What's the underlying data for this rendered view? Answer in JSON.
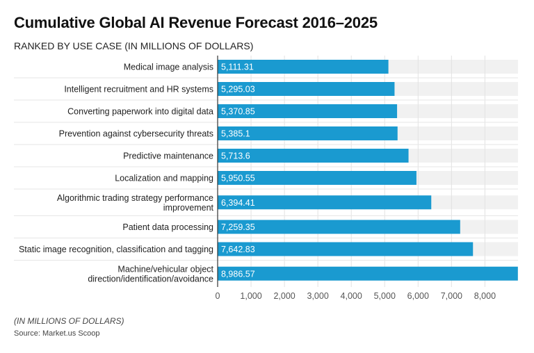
{
  "title": "Cumulative Global AI Revenue Forecast 2016–2025",
  "subtitle": "RANKED BY USE CASE (IN MILLIONS OF DOLLARS)",
  "note": "(IN MILLIONS OF DOLLARS)",
  "source": "Source: Market.us Scoop",
  "chart_data": {
    "type": "bar",
    "orientation": "horizontal",
    "categories": [
      "Medical image analysis",
      "Intelligent recruitment and HR systems",
      "Converting paperwork into digital data",
      "Prevention against cybersecurity threats",
      "Predictive maintenance",
      "Localization and mapping",
      "Algorithmic trading strategy performance improvement",
      "Patient data processing",
      "Static image recognition, classification and tagging",
      "Machine/vehicular object direction/identification/avoidance"
    ],
    "values": [
      5111.31,
      5295.03,
      5370.85,
      5385.1,
      5713.6,
      5950.55,
      6394.41,
      7259.35,
      7642.83,
      8986.57
    ],
    "data_labels": [
      "5,111.31",
      "5,295.03",
      "5,370.85",
      "5,385.1",
      "5,713.6",
      "5,950.55",
      "6,394.41",
      "7,259.35",
      "7,642.83",
      "8,986.57"
    ],
    "xticks": [
      "0",
      "1,000",
      "2,000",
      "3,000",
      "4,000",
      "5,000",
      "6,000",
      "7,000",
      "8,000"
    ],
    "xlim": [
      0,
      8990
    ],
    "grid": true,
    "bar_color": "#1a9ad0"
  }
}
